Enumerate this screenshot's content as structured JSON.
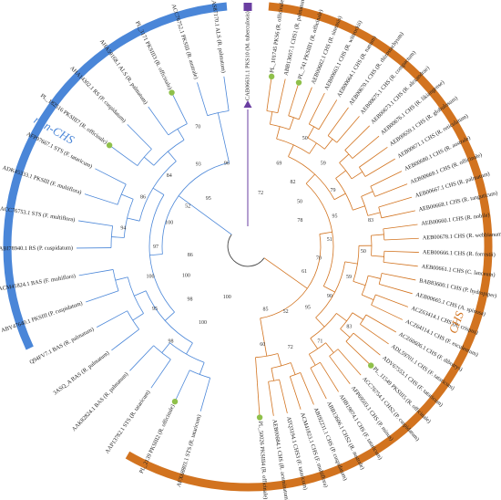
{
  "colors": {
    "chs": "#d2731f",
    "non_chs": "#4a86d8",
    "outgroup": "#6a3ea1",
    "marker": "#8fc04a",
    "root": "#444444"
  },
  "groups": {
    "chs_label": "CHS",
    "non_chs_label": "non-CHS"
  },
  "outgroup": {
    "label": "CAB06631.1 PKS10 (M. tuberculosis)"
  },
  "chs_leaves": [
    {
      "label": "PL_101745 PKS6 (R. officinale)",
      "marker": true
    },
    {
      "label": "ABB13607.1 CHS1 (R. palmatum)"
    },
    {
      "label": "PL_741 PKSIII1 (R. officinale)",
      "marker": true
    },
    {
      "label": "AEB00682.1 CHS (R. sinensis)"
    },
    {
      "label": "AEB00663.1 CHS (R. wittrockii)"
    },
    {
      "label": "AEB00664.1 CHS (R. nanum)"
    },
    {
      "label": "AEB00670.1 CHS (R. rhizostachyum)"
    },
    {
      "label": "AEB00675.1 CHS (R. compactum)"
    },
    {
      "label": "AEB00673.1 CHS (R. alexandrae)"
    },
    {
      "label": "AEB00676.1 CHS (R. likiangense)"
    },
    {
      "label": "AEB00659.1 CHS (R. globulosum)"
    },
    {
      "label": "AEB00671.1 CHS (R. reticulatum)"
    },
    {
      "label": "AEB00680.1 CHS (R. australe)"
    },
    {
      "label": "AEB00669.1 CHS (R. officinale)"
    },
    {
      "label": "AEB00667.1 CHS (R. palmatum)"
    },
    {
      "label": "AEB00668.1 CHS (R. tanguticum)"
    },
    {
      "label": "AEB00660.1 CHS (R. nobile)"
    },
    {
      "label": "AEB00678.1 CHS (R. webbianum)"
    },
    {
      "label": "AEB00666.1 CHS (R. forrestii)"
    },
    {
      "label": "AEB00661.1 CHS (C. lanceum)"
    },
    {
      "label": "BAB83600.1 CHS (P. hydropiper)"
    },
    {
      "label": "AEB00665.1 CHS (A. spinosa)"
    },
    {
      "label": "ACZ63414.1 CHS (R. crispus)"
    },
    {
      "label": "ACZ64114.1 CHS (F. esculentum)"
    },
    {
      "label": "ACZ60606.1 CHS (F. dibotrys)"
    },
    {
      "label": "ADL59701.1 CHS (F. tataricum)"
    },
    {
      "label": "ADV67553.1 CHS (F. tataricum)"
    },
    {
      "label": "PL_11549 PKSIII5 (R. officinale)",
      "marker": true
    },
    {
      "label": "ACC76754.1 CHS2 (P. cuspidatum)"
    },
    {
      "label": "AFP69503.1 CHS (P. minus)"
    },
    {
      "label": "AHB19074.1 CHS (F. tataricum)"
    },
    {
      "label": "ABB13606.1 CHS2 (R. australe)"
    },
    {
      "label": "ABI92231.1 CHS (P. cuspidatum)"
    },
    {
      "label": "ACM41823.1 CHS (F. multiflora)"
    },
    {
      "label": "ATQ3194.1 CHS3 (F. tataricum)"
    },
    {
      "label": "AEB00684.1 CHS (R. acuminatum)"
    },
    {
      "label": "PL_50026 PKSIII4 (R. officinale)",
      "marker": true
    }
  ],
  "non_chs_leaves": [
    {
      "label": "AFX68803.1 STS (R. tataricum)"
    },
    {
      "label": "PL_2139 PKSIII2 (R. officinale)",
      "marker": true
    },
    {
      "label": "AAP13782.1 STS (R. tataricum)"
    },
    {
      "label": "AAK82824.1 BAS (R. palmatum)"
    },
    {
      "label": "3ASQ_A BAS (R. palmatum)"
    },
    {
      "label": "Q94FV7.1 BAS (R. palmatum)"
    },
    {
      "label": "ABY47640.1 PKSIII (P. cuspidatum)"
    },
    {
      "label": "ACM41824.1 BAS (F. multiflora)"
    },
    {
      "label": "ABI78940.1 RS (P. cuspidatum)"
    },
    {
      "label": "ACC76753.1 STS (F. multiflora)"
    },
    {
      "label": "ADK45333.1 PKSIII (F. multiflora)"
    },
    {
      "label": "AFP97667.1 STS (F. tataricum)"
    },
    {
      "label": "PL_182516 PKSIII7 (R. officinale)",
      "marker": true
    },
    {
      "label": "AHA14302.1 RS (P. cuspidatum)"
    },
    {
      "label": "AHA59168.1 ALS (R. palmatum)"
    },
    {
      "label": "PL_3171 PKSIII3 (R. officinale)",
      "marker": true
    },
    {
      "label": "ACC76752.1 PKSIII (R. australe)"
    },
    {
      "label": "AAS87170.1 ALS (R. palmatum)"
    }
  ],
  "bootstraps": {
    "chs": [
      "72",
      "69",
      "50",
      "82",
      "59",
      "50",
      "79",
      "78",
      "95",
      "83",
      "51",
      "50",
      "70",
      "59",
      "61",
      "90",
      "83",
      "95",
      "71",
      "52",
      "72",
      "85",
      "60"
    ],
    "non_chs": [
      "100",
      "100",
      "98",
      "98",
      "95",
      "100",
      "100",
      "86",
      "97",
      "94",
      "100",
      "86",
      "52",
      "84",
      "95",
      "93",
      "70",
      "96"
    ]
  }
}
